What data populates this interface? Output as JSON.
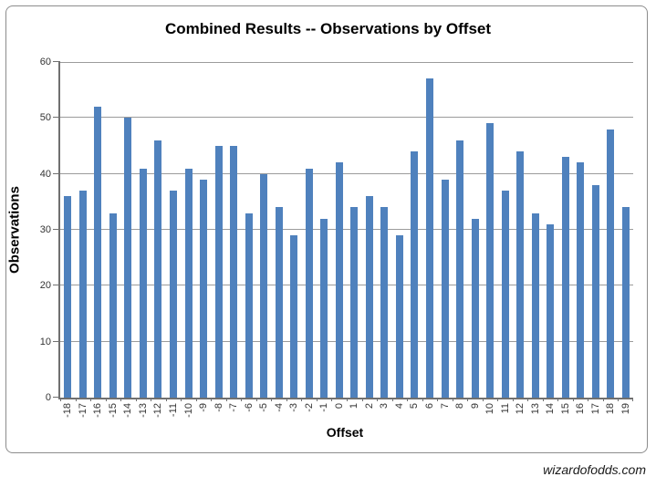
{
  "title": "Combined Results -- Observations by Offset",
  "watermark": "wizardofodds.com",
  "chart_data": {
    "type": "bar",
    "title": "Combined Results -- Observations by Offset",
    "xlabel": "Offset",
    "ylabel": "Observations",
    "categories": [
      -18,
      -17,
      -16,
      -15,
      -14,
      -13,
      -12,
      -11,
      -10,
      -9,
      -8,
      -7,
      -6,
      -5,
      -4,
      -3,
      -2,
      -1,
      0,
      1,
      2,
      3,
      4,
      5,
      6,
      7,
      8,
      9,
      10,
      11,
      12,
      13,
      14,
      15,
      16,
      17,
      18,
      19
    ],
    "values": [
      36,
      37,
      52,
      33,
      50,
      41,
      46,
      37,
      41,
      39,
      45,
      45,
      33,
      40,
      34,
      29,
      41,
      32,
      42,
      34,
      36,
      34,
      29,
      44,
      57,
      39,
      46,
      32,
      49,
      37,
      44,
      33,
      31,
      43,
      42,
      38,
      48,
      34
    ],
    "ylim": [
      0,
      60
    ],
    "yticks": [
      0,
      10,
      20,
      30,
      40,
      50,
      60
    ],
    "grid": true,
    "legend": "none",
    "bar_color": "#4F81BD",
    "gridline_color": "#9b9b9b",
    "axis_color": "#707070",
    "frame_border_color": "#8c8c8c",
    "label_color": "#333333"
  }
}
